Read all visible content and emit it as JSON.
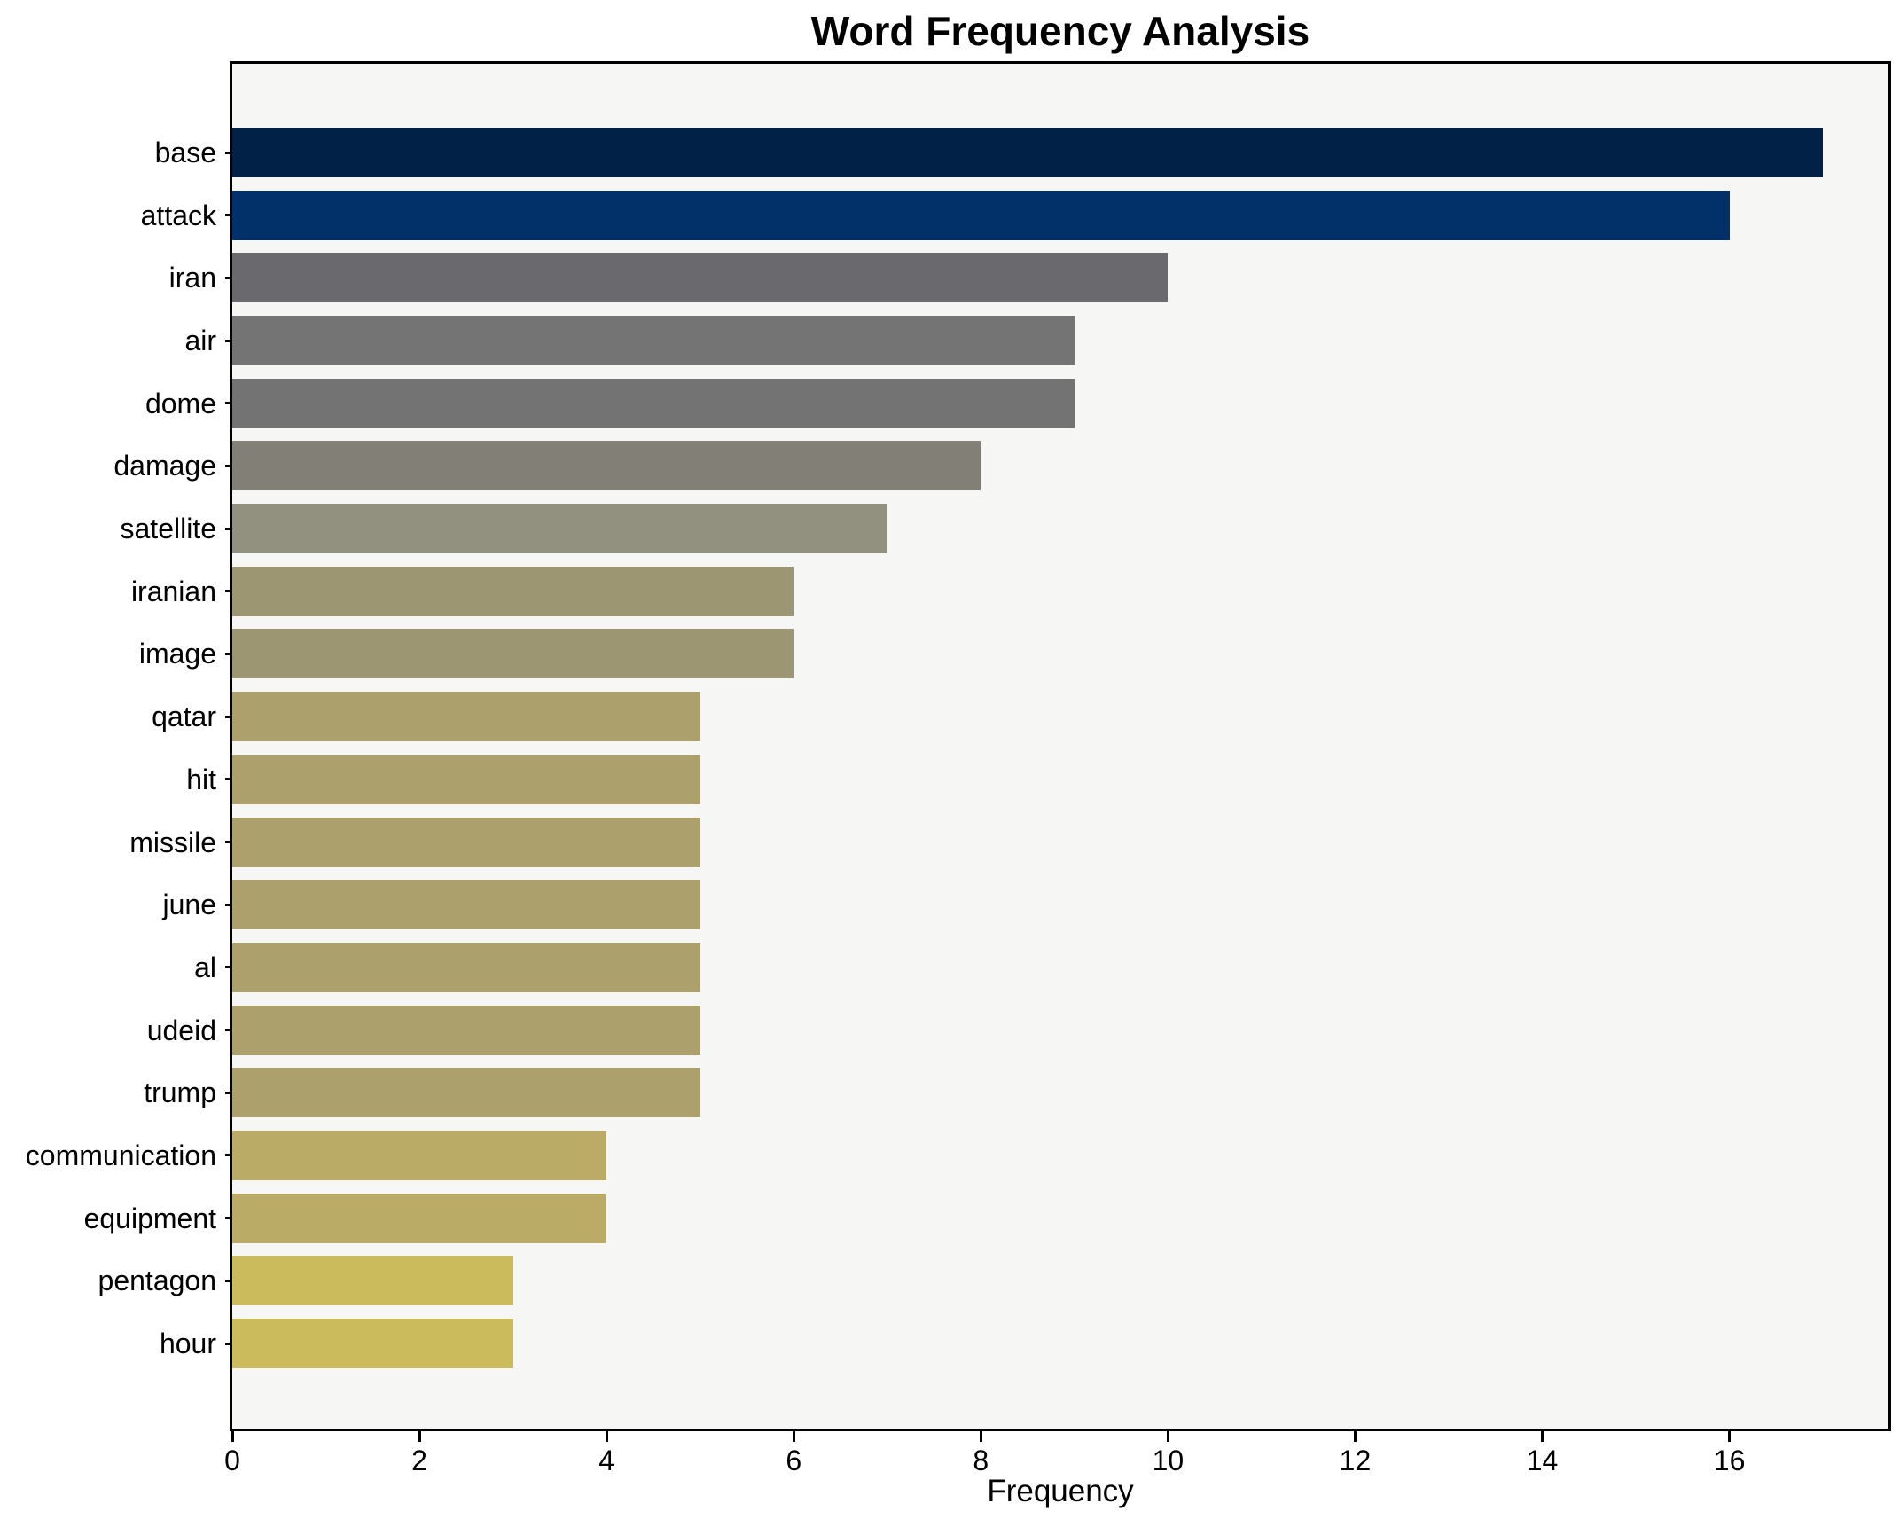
{
  "chart_data": {
    "type": "bar",
    "orientation": "horizontal",
    "title": "Word Frequency Analysis",
    "xlabel": "Frequency",
    "ylabel": "",
    "xlim": [
      0,
      17.7
    ],
    "xticks": [
      0,
      2,
      4,
      6,
      8,
      10,
      12,
      14,
      16
    ],
    "grid": false,
    "legend_position": "none",
    "bar_colormap": "cividis",
    "page_background": "#FFFFFF",
    "plot_background": "#F6F6F4",
    "spine_color": "#000000",
    "categories": [
      "base",
      "attack",
      "iran",
      "air",
      "dome",
      "damage",
      "satellite",
      "iranian",
      "image",
      "qatar",
      "hit",
      "missile",
      "june",
      "al",
      "udeid",
      "trump",
      "communication",
      "equipment",
      "pentagon",
      "hour"
    ],
    "values": [
      17,
      16,
      10,
      9,
      9,
      8,
      7,
      6,
      6,
      5,
      5,
      5,
      5,
      5,
      5,
      5,
      4,
      4,
      3,
      3
    ],
    "colors": [
      "#012147",
      "#013168",
      "#6A6A6E",
      "#747474",
      "#737373",
      "#827F76",
      "#92907E",
      "#9C9772",
      "#9C9772",
      "#ACA16D",
      "#ACA16D",
      "#ACA16D",
      "#ACA16D",
      "#ACA16D",
      "#ACA16D",
      "#ACA16D",
      "#BAAC66",
      "#BAAC66",
      "#CBBB5D",
      "#CBBB5D"
    ]
  }
}
